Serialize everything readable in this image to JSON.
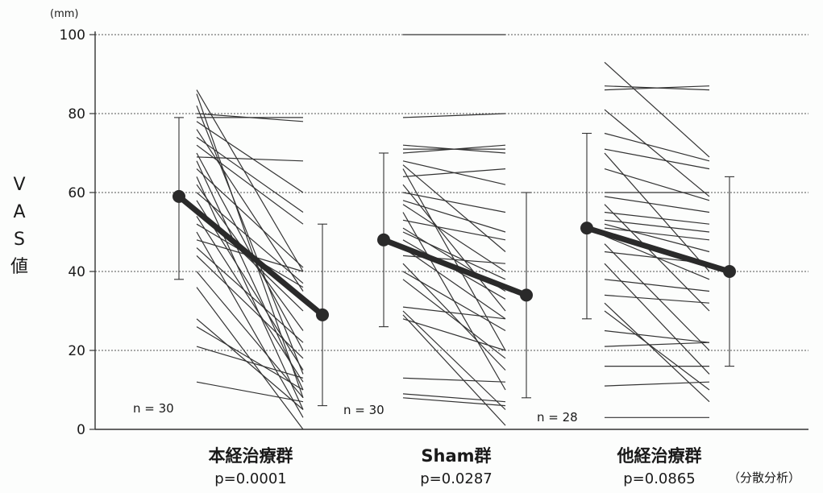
{
  "chart_data": {
    "type": "line",
    "y_unit": "(mm)",
    "ylabel": "VAS値",
    "ylim": [
      0,
      100
    ],
    "yticks": [
      0,
      20,
      40,
      60,
      80,
      100
    ],
    "grid": true,
    "groups": [
      {
        "category": "本経治療群",
        "p_value": "p=0.0001",
        "n_label": "n = 30",
        "mean": {
          "pre": 59,
          "post": 29
        },
        "error_bar": {
          "pre": [
            38,
            79
          ],
          "post": [
            6,
            52
          ]
        },
        "subjects": [
          {
            "pre": 86,
            "post": 40
          },
          {
            "pre": 85,
            "post": 8
          },
          {
            "pre": 82,
            "post": 14
          },
          {
            "pre": 80,
            "post": 78
          },
          {
            "pre": 79,
            "post": 79
          },
          {
            "pre": 78,
            "post": 60
          },
          {
            "pre": 76,
            "post": 35
          },
          {
            "pre": 74,
            "post": 55
          },
          {
            "pre": 72,
            "post": 52
          },
          {
            "pre": 70,
            "post": 20
          },
          {
            "pre": 69,
            "post": 68
          },
          {
            "pre": 68,
            "post": 10
          },
          {
            "pre": 66,
            "post": 41
          },
          {
            "pre": 64,
            "post": 5
          },
          {
            "pre": 62,
            "post": 25
          },
          {
            "pre": 60,
            "post": 37
          },
          {
            "pre": 58,
            "post": 15
          },
          {
            "pre": 56,
            "post": 30
          },
          {
            "pre": 54,
            "post": 12
          },
          {
            "pre": 52,
            "post": 36
          },
          {
            "pre": 50,
            "post": 3
          },
          {
            "pre": 48,
            "post": 40
          },
          {
            "pre": 46,
            "post": 22
          },
          {
            "pre": 44,
            "post": 18
          },
          {
            "pre": 40,
            "post": 8
          },
          {
            "pre": 36,
            "post": 0
          },
          {
            "pre": 28,
            "post": 5
          },
          {
            "pre": 26,
            "post": 10
          },
          {
            "pre": 21,
            "post": 13
          },
          {
            "pre": 12,
            "post": 7
          }
        ]
      },
      {
        "category": "Sham群",
        "p_value": "p=0.0287",
        "n_label": "n = 30",
        "mean": {
          "pre": 48,
          "post": 34
        },
        "error_bar": {
          "pre": [
            26,
            70
          ],
          "post": [
            8,
            60
          ]
        },
        "subjects": [
          {
            "pre": 100,
            "post": 100
          },
          {
            "pre": 79,
            "post": 80
          },
          {
            "pre": 72,
            "post": 70
          },
          {
            "pre": 71,
            "post": 71
          },
          {
            "pre": 70,
            "post": 72
          },
          {
            "pre": 68,
            "post": 62
          },
          {
            "pre": 67,
            "post": 45
          },
          {
            "pre": 66,
            "post": 20
          },
          {
            "pre": 64,
            "post": 66
          },
          {
            "pre": 62,
            "post": 30
          },
          {
            "pre": 60,
            "post": 55
          },
          {
            "pre": 58,
            "post": 50
          },
          {
            "pre": 57,
            "post": 40
          },
          {
            "pre": 55,
            "post": 10
          },
          {
            "pre": 53,
            "post": 48
          },
          {
            "pre": 51,
            "post": 35
          },
          {
            "pre": 50,
            "post": 38
          },
          {
            "pre": 48,
            "post": 33
          },
          {
            "pre": 46,
            "post": 28
          },
          {
            "pre": 44,
            "post": 42
          },
          {
            "pre": 42,
            "post": 15
          },
          {
            "pre": 40,
            "post": 25
          },
          {
            "pre": 38,
            "post": 18
          },
          {
            "pre": 31,
            "post": 28
          },
          {
            "pre": 30,
            "post": 5
          },
          {
            "pre": 29,
            "post": 1
          },
          {
            "pre": 28,
            "post": 20
          },
          {
            "pre": 13,
            "post": 12
          },
          {
            "pre": 9,
            "post": 7
          },
          {
            "pre": 8,
            "post": 6
          }
        ]
      },
      {
        "category": "他経治療群",
        "p_value": "p=0.0865",
        "n_label": "n = 28",
        "mean": {
          "pre": 51,
          "post": 40
        },
        "error_bar": {
          "pre": [
            28,
            75
          ],
          "post": [
            16,
            64
          ]
        },
        "subjects": [
          {
            "pre": 93,
            "post": 69
          },
          {
            "pre": 87,
            "post": 86
          },
          {
            "pre": 86,
            "post": 87
          },
          {
            "pre": 81,
            "post": 59
          },
          {
            "pre": 75,
            "post": 68
          },
          {
            "pre": 71,
            "post": 66
          },
          {
            "pre": 70,
            "post": 40
          },
          {
            "pre": 66,
            "post": 58
          },
          {
            "pre": 60,
            "post": 60
          },
          {
            "pre": 59,
            "post": 55
          },
          {
            "pre": 57,
            "post": 30
          },
          {
            "pre": 55,
            "post": 52
          },
          {
            "pre": 53,
            "post": 50
          },
          {
            "pre": 52,
            "post": 45
          },
          {
            "pre": 51,
            "post": 48
          },
          {
            "pre": 49,
            "post": 38
          },
          {
            "pre": 47,
            "post": 20
          },
          {
            "pre": 45,
            "post": 42
          },
          {
            "pre": 42,
            "post": 14
          },
          {
            "pre": 38,
            "post": 35
          },
          {
            "pre": 34,
            "post": 32
          },
          {
            "pre": 32,
            "post": 7
          },
          {
            "pre": 30,
            "post": 10
          },
          {
            "pre": 25,
            "post": 22
          },
          {
            "pre": 21,
            "post": 22
          },
          {
            "pre": 16,
            "post": 16
          },
          {
            "pre": 11,
            "post": 12
          },
          {
            "pre": 3,
            "post": 3
          }
        ]
      }
    ],
    "footnote": "（分散分析）"
  }
}
